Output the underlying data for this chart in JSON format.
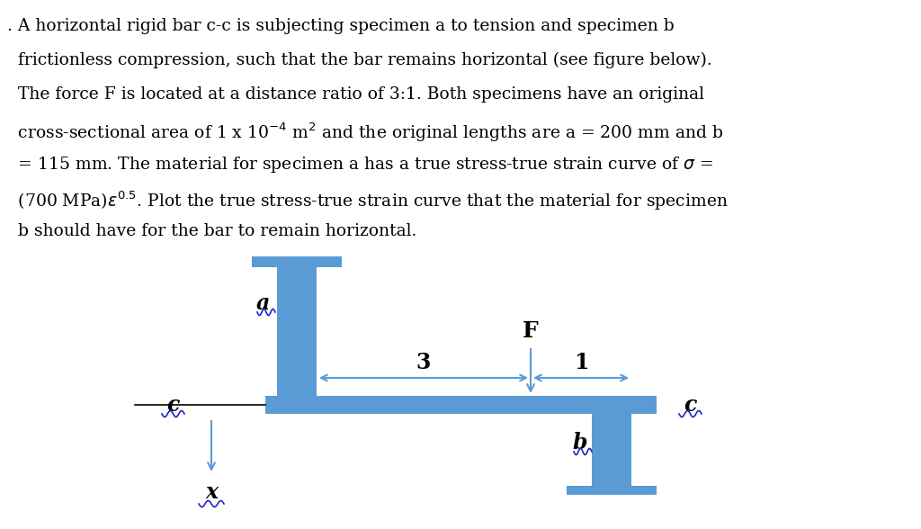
{
  "bg_color": "#ffffff",
  "text_color": "#000000",
  "bar_color": "#5b9bd5",
  "arrow_color": "#5b9bd5",
  "wavy_color": "#2222cc",
  "fig_width": 10.24,
  "fig_height": 5.88,
  "dpi": 100,
  "text_lines": [
    ". A horizontal rigid bar c-c is subjecting specimen a to tension and specimen b",
    "  frictionless compression, such that the bar remains horizontal (see figure below).",
    "  The force F is located at a distance ratio of 3:1. Both specimens have an original",
    "  cross-sectional area of 1 x 10$^{-4}$ m$^{2}$ and the original lengths are a = 200 mm and b",
    "  = 115 mm. The material for specimen a has a true stress-true strain curve of $\\sigma$ =",
    "  (700 MPa)$\\varepsilon^{0.5}$. Plot the true stress-true strain curve that the material for specimen",
    "  b should have for the bar to remain horizontal."
  ]
}
